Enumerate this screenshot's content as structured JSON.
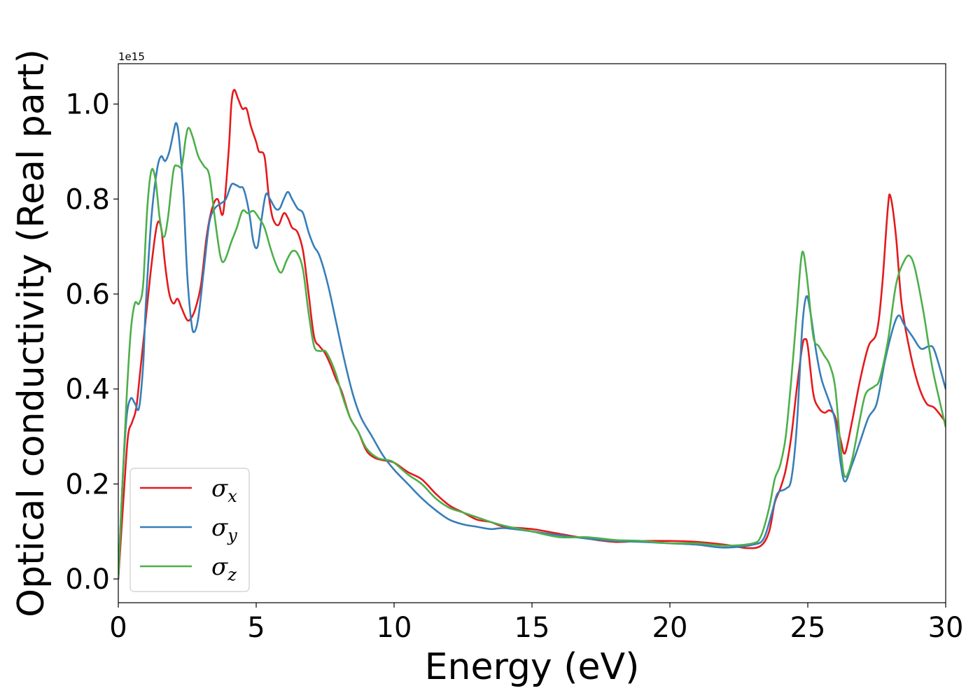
{
  "chart_data": {
    "type": "line",
    "xlabel": "Energy (eV)",
    "ylabel": "Optical conductivity (Real part)",
    "y_offset_text": "1e15",
    "xlim": [
      0,
      30
    ],
    "ylim": [
      -0.05,
      1.085
    ],
    "xticks": [
      0,
      5,
      10,
      15,
      20,
      25,
      30
    ],
    "xtick_labels": [
      "0",
      "5",
      "10",
      "15",
      "20",
      "25",
      "30"
    ],
    "yticks": [
      0.0,
      0.2,
      0.4,
      0.6,
      0.8,
      1.0
    ],
    "ytick_labels": [
      "0.0",
      "0.2",
      "0.4",
      "0.6",
      "0.8",
      "1.0"
    ],
    "grid": false,
    "legend_position": "lower-left",
    "series": [
      {
        "name": "σx",
        "symbol": "σ",
        "subscript": "x",
        "color": "#e41a1c",
        "points": [
          [
            0,
            0.0
          ],
          [
            0.2,
            0.18
          ],
          [
            0.35,
            0.3
          ],
          [
            0.5,
            0.33
          ],
          [
            0.65,
            0.36
          ],
          [
            0.8,
            0.44
          ],
          [
            1.0,
            0.55
          ],
          [
            1.2,
            0.66
          ],
          [
            1.4,
            0.745
          ],
          [
            1.55,
            0.74
          ],
          [
            1.7,
            0.66
          ],
          [
            1.85,
            0.6
          ],
          [
            2.0,
            0.58
          ],
          [
            2.15,
            0.59
          ],
          [
            2.3,
            0.57
          ],
          [
            2.5,
            0.545
          ],
          [
            2.65,
            0.55
          ],
          [
            2.8,
            0.57
          ],
          [
            3.0,
            0.62
          ],
          [
            3.2,
            0.72
          ],
          [
            3.4,
            0.78
          ],
          [
            3.6,
            0.8
          ],
          [
            3.8,
            0.77
          ],
          [
            4.0,
            0.9
          ],
          [
            4.1,
            1.0
          ],
          [
            4.2,
            1.03
          ],
          [
            4.35,
            1.01
          ],
          [
            4.5,
            0.99
          ],
          [
            4.65,
            0.99
          ],
          [
            4.8,
            0.955
          ],
          [
            5.0,
            0.92
          ],
          [
            5.1,
            0.9
          ],
          [
            5.3,
            0.89
          ],
          [
            5.45,
            0.81
          ],
          [
            5.6,
            0.76
          ],
          [
            5.8,
            0.745
          ],
          [
            6.0,
            0.77
          ],
          [
            6.15,
            0.76
          ],
          [
            6.3,
            0.74
          ],
          [
            6.5,
            0.73
          ],
          [
            6.7,
            0.69
          ],
          [
            6.9,
            0.6
          ],
          [
            7.1,
            0.51
          ],
          [
            7.3,
            0.49
          ],
          [
            7.5,
            0.475
          ],
          [
            7.7,
            0.45
          ],
          [
            7.9,
            0.42
          ],
          [
            8.1,
            0.395
          ],
          [
            8.4,
            0.34
          ],
          [
            8.7,
            0.31
          ],
          [
            9.0,
            0.27
          ],
          [
            9.3,
            0.255
          ],
          [
            9.6,
            0.25
          ],
          [
            10.0,
            0.245
          ],
          [
            10.5,
            0.225
          ],
          [
            11.0,
            0.21
          ],
          [
            11.5,
            0.18
          ],
          [
            12.0,
            0.155
          ],
          [
            12.5,
            0.14
          ],
          [
            13.0,
            0.125
          ],
          [
            13.5,
            0.12
          ],
          [
            14.0,
            0.11
          ],
          [
            15.0,
            0.105
          ],
          [
            16.0,
            0.095
          ],
          [
            17.0,
            0.085
          ],
          [
            18.0,
            0.078
          ],
          [
            19.0,
            0.08
          ],
          [
            20.0,
            0.08
          ],
          [
            21.0,
            0.078
          ],
          [
            22.0,
            0.072
          ],
          [
            22.8,
            0.065
          ],
          [
            23.3,
            0.07
          ],
          [
            23.6,
            0.1
          ],
          [
            23.8,
            0.16
          ],
          [
            24.0,
            0.19
          ],
          [
            24.2,
            0.23
          ],
          [
            24.4,
            0.3
          ],
          [
            24.6,
            0.4
          ],
          [
            24.8,
            0.49
          ],
          [
            24.9,
            0.505
          ],
          [
            25.0,
            0.49
          ],
          [
            25.2,
            0.39
          ],
          [
            25.4,
            0.36
          ],
          [
            25.6,
            0.35
          ],
          [
            25.8,
            0.355
          ],
          [
            26.0,
            0.34
          ],
          [
            26.2,
            0.29
          ],
          [
            26.35,
            0.265
          ],
          [
            26.6,
            0.33
          ],
          [
            26.9,
            0.42
          ],
          [
            27.2,
            0.49
          ],
          [
            27.5,
            0.52
          ],
          [
            27.7,
            0.62
          ],
          [
            27.9,
            0.78
          ],
          [
            28.0,
            0.805
          ],
          [
            28.2,
            0.72
          ],
          [
            28.4,
            0.58
          ],
          [
            28.7,
            0.48
          ],
          [
            29.0,
            0.41
          ],
          [
            29.3,
            0.37
          ],
          [
            29.6,
            0.36
          ],
          [
            30.0,
            0.33
          ]
        ]
      },
      {
        "name": "σy",
        "symbol": "σ",
        "subscript": "y",
        "color": "#377eb8",
        "points": [
          [
            0,
            0.0
          ],
          [
            0.15,
            0.2
          ],
          [
            0.3,
            0.34
          ],
          [
            0.45,
            0.38
          ],
          [
            0.6,
            0.37
          ],
          [
            0.75,
            0.36
          ],
          [
            0.9,
            0.45
          ],
          [
            1.0,
            0.58
          ],
          [
            1.2,
            0.76
          ],
          [
            1.4,
            0.86
          ],
          [
            1.55,
            0.89
          ],
          [
            1.7,
            0.88
          ],
          [
            1.85,
            0.9
          ],
          [
            2.0,
            0.94
          ],
          [
            2.1,
            0.96
          ],
          [
            2.2,
            0.93
          ],
          [
            2.35,
            0.82
          ],
          [
            2.5,
            0.64
          ],
          [
            2.65,
            0.54
          ],
          [
            2.75,
            0.52
          ],
          [
            2.9,
            0.55
          ],
          [
            3.1,
            0.65
          ],
          [
            3.3,
            0.75
          ],
          [
            3.5,
            0.78
          ],
          [
            3.7,
            0.79
          ],
          [
            3.9,
            0.8
          ],
          [
            4.1,
            0.83
          ],
          [
            4.25,
            0.83
          ],
          [
            4.4,
            0.825
          ],
          [
            4.55,
            0.82
          ],
          [
            4.75,
            0.77
          ],
          [
            4.9,
            0.71
          ],
          [
            5.05,
            0.7
          ],
          [
            5.2,
            0.76
          ],
          [
            5.35,
            0.81
          ],
          [
            5.5,
            0.8
          ],
          [
            5.7,
            0.78
          ],
          [
            5.85,
            0.78
          ],
          [
            6.0,
            0.8
          ],
          [
            6.15,
            0.815
          ],
          [
            6.3,
            0.8
          ],
          [
            6.5,
            0.78
          ],
          [
            6.7,
            0.77
          ],
          [
            6.9,
            0.73
          ],
          [
            7.1,
            0.7
          ],
          [
            7.3,
            0.68
          ],
          [
            7.6,
            0.62
          ],
          [
            7.9,
            0.54
          ],
          [
            8.2,
            0.46
          ],
          [
            8.5,
            0.39
          ],
          [
            8.8,
            0.34
          ],
          [
            9.2,
            0.3
          ],
          [
            9.6,
            0.26
          ],
          [
            10.0,
            0.23
          ],
          [
            10.5,
            0.2
          ],
          [
            11.0,
            0.17
          ],
          [
            11.5,
            0.145
          ],
          [
            12.0,
            0.125
          ],
          [
            12.5,
            0.115
          ],
          [
            13.0,
            0.11
          ],
          [
            13.5,
            0.105
          ],
          [
            14.0,
            0.107
          ],
          [
            15.0,
            0.1
          ],
          [
            16.0,
            0.092
          ],
          [
            17.0,
            0.085
          ],
          [
            18.0,
            0.08
          ],
          [
            19.0,
            0.078
          ],
          [
            20.0,
            0.075
          ],
          [
            21.0,
            0.072
          ],
          [
            22.0,
            0.066
          ],
          [
            23.0,
            0.072
          ],
          [
            23.4,
            0.085
          ],
          [
            23.7,
            0.14
          ],
          [
            23.9,
            0.18
          ],
          [
            24.2,
            0.19
          ],
          [
            24.4,
            0.21
          ],
          [
            24.6,
            0.32
          ],
          [
            24.8,
            0.53
          ],
          [
            24.95,
            0.595
          ],
          [
            25.1,
            0.56
          ],
          [
            25.3,
            0.48
          ],
          [
            25.5,
            0.42
          ],
          [
            25.8,
            0.37
          ],
          [
            26.0,
            0.33
          ],
          [
            26.2,
            0.24
          ],
          [
            26.35,
            0.205
          ],
          [
            26.6,
            0.24
          ],
          [
            26.9,
            0.29
          ],
          [
            27.2,
            0.34
          ],
          [
            27.5,
            0.37
          ],
          [
            27.8,
            0.46
          ],
          [
            28.1,
            0.53
          ],
          [
            28.3,
            0.555
          ],
          [
            28.5,
            0.535
          ],
          [
            28.8,
            0.51
          ],
          [
            29.1,
            0.485
          ],
          [
            29.4,
            0.49
          ],
          [
            29.6,
            0.48
          ],
          [
            30.0,
            0.4
          ]
        ]
      },
      {
        "name": "σz",
        "symbol": "σ",
        "subscript": "z",
        "color": "#4daf4a",
        "points": [
          [
            0,
            0.0
          ],
          [
            0.15,
            0.2
          ],
          [
            0.3,
            0.38
          ],
          [
            0.45,
            0.52
          ],
          [
            0.6,
            0.58
          ],
          [
            0.75,
            0.58
          ],
          [
            0.9,
            0.62
          ],
          [
            1.05,
            0.78
          ],
          [
            1.2,
            0.86
          ],
          [
            1.35,
            0.84
          ],
          [
            1.5,
            0.76
          ],
          [
            1.65,
            0.72
          ],
          [
            1.8,
            0.76
          ],
          [
            2.0,
            0.86
          ],
          [
            2.15,
            0.87
          ],
          [
            2.3,
            0.87
          ],
          [
            2.45,
            0.93
          ],
          [
            2.55,
            0.95
          ],
          [
            2.7,
            0.93
          ],
          [
            2.9,
            0.89
          ],
          [
            3.1,
            0.87
          ],
          [
            3.3,
            0.85
          ],
          [
            3.5,
            0.76
          ],
          [
            3.7,
            0.68
          ],
          [
            3.85,
            0.67
          ],
          [
            4.1,
            0.71
          ],
          [
            4.3,
            0.74
          ],
          [
            4.5,
            0.775
          ],
          [
            4.7,
            0.77
          ],
          [
            4.9,
            0.775
          ],
          [
            5.1,
            0.76
          ],
          [
            5.3,
            0.74
          ],
          [
            5.5,
            0.7
          ],
          [
            5.7,
            0.665
          ],
          [
            5.9,
            0.645
          ],
          [
            6.1,
            0.67
          ],
          [
            6.3,
            0.69
          ],
          [
            6.5,
            0.685
          ],
          [
            6.7,
            0.65
          ],
          [
            6.9,
            0.56
          ],
          [
            7.1,
            0.49
          ],
          [
            7.3,
            0.48
          ],
          [
            7.5,
            0.48
          ],
          [
            7.7,
            0.46
          ],
          [
            7.9,
            0.43
          ],
          [
            8.1,
            0.39
          ],
          [
            8.4,
            0.34
          ],
          [
            8.7,
            0.31
          ],
          [
            9.0,
            0.275
          ],
          [
            9.4,
            0.255
          ],
          [
            9.8,
            0.25
          ],
          [
            10.0,
            0.245
          ],
          [
            10.5,
            0.22
          ],
          [
            11.0,
            0.2
          ],
          [
            11.5,
            0.17
          ],
          [
            12.0,
            0.15
          ],
          [
            12.5,
            0.14
          ],
          [
            13.0,
            0.13
          ],
          [
            13.5,
            0.12
          ],
          [
            14.0,
            0.112
          ],
          [
            15.0,
            0.1
          ],
          [
            16.0,
            0.088
          ],
          [
            17.0,
            0.088
          ],
          [
            18.0,
            0.082
          ],
          [
            19.0,
            0.08
          ],
          [
            20.0,
            0.075
          ],
          [
            21.0,
            0.075
          ],
          [
            22.0,
            0.07
          ],
          [
            23.0,
            0.075
          ],
          [
            23.3,
            0.09
          ],
          [
            23.6,
            0.15
          ],
          [
            23.8,
            0.21
          ],
          [
            24.0,
            0.24
          ],
          [
            24.2,
            0.3
          ],
          [
            24.4,
            0.42
          ],
          [
            24.6,
            0.56
          ],
          [
            24.75,
            0.67
          ],
          [
            24.85,
            0.685
          ],
          [
            25.0,
            0.62
          ],
          [
            25.2,
            0.51
          ],
          [
            25.4,
            0.49
          ],
          [
            25.6,
            0.47
          ],
          [
            25.8,
            0.45
          ],
          [
            26.0,
            0.4
          ],
          [
            26.2,
            0.27
          ],
          [
            26.35,
            0.215
          ],
          [
            26.6,
            0.25
          ],
          [
            26.9,
            0.34
          ],
          [
            27.1,
            0.39
          ],
          [
            27.4,
            0.405
          ],
          [
            27.6,
            0.42
          ],
          [
            27.9,
            0.5
          ],
          [
            28.2,
            0.62
          ],
          [
            28.5,
            0.67
          ],
          [
            28.7,
            0.68
          ],
          [
            28.9,
            0.65
          ],
          [
            29.2,
            0.56
          ],
          [
            29.5,
            0.45
          ],
          [
            29.8,
            0.37
          ],
          [
            30.0,
            0.32
          ]
        ]
      }
    ]
  }
}
